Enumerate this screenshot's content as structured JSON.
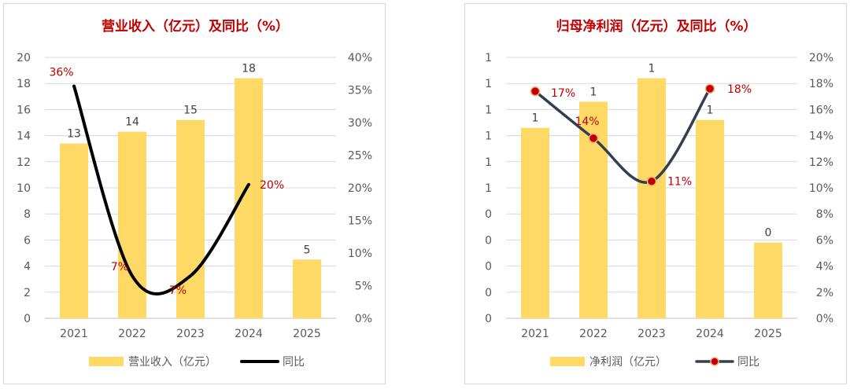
{
  "chart_data": [
    {
      "type": "bar",
      "title": "营业收入（亿元）及同比（%）",
      "categories": [
        "2021",
        "2022",
        "2023",
        "2024",
        "2025"
      ],
      "ylim": [
        0,
        20
      ],
      "y_ticks": [
        "0",
        "2",
        "4",
        "6",
        "8",
        "10",
        "12",
        "14",
        "16",
        "18",
        "20"
      ],
      "y2lim": [
        0,
        40
      ],
      "y2_ticks": [
        "0%",
        "5%",
        "10%",
        "15%",
        "20%",
        "25%",
        "30%",
        "35%",
        "40%"
      ],
      "series": [
        {
          "name": "营业收入（亿元）",
          "type": "bar",
          "axis": "left",
          "values": [
            13.4,
            14.3,
            15.2,
            18.4,
            4.5
          ],
          "labels": [
            "13",
            "14",
            "15",
            "18",
            "5"
          ]
        },
        {
          "name": "同比",
          "type": "line",
          "axis": "right",
          "smooth": true,
          "markers": false,
          "values": [
            35.6,
            6.5,
            6.5,
            20.5,
            null
          ],
          "labels": [
            "36%",
            "7%",
            "7%",
            "20%",
            ""
          ]
        }
      ],
      "legend_position": "bottom",
      "grid": true,
      "colors": {
        "bar": "#FFD966",
        "line": "#000000",
        "labels": "#C00000"
      }
    },
    {
      "type": "bar",
      "title": "归母净利润（亿元）及同比（%）",
      "categories": [
        "2021",
        "2022",
        "2023",
        "2024",
        "2025"
      ],
      "ylim": [
        0,
        1.0
      ],
      "y_ticks": [
        "0",
        "0",
        "0",
        "0",
        "0",
        "1",
        "1",
        "1",
        "1",
        "1",
        "1"
      ],
      "y2lim": [
        0,
        20
      ],
      "y2_ticks": [
        "0%",
        "2%",
        "4%",
        "6%",
        "8%",
        "10%",
        "12%",
        "14%",
        "16%",
        "18%",
        "20%"
      ],
      "series": [
        {
          "name": "净利润（亿元）",
          "type": "bar",
          "axis": "left",
          "values": [
            0.73,
            0.83,
            0.92,
            0.76,
            0.29
          ],
          "labels": [
            "1",
            "1",
            "1",
            "1",
            "0"
          ]
        },
        {
          "name": "同比",
          "type": "line",
          "axis": "right",
          "smooth": true,
          "markers": true,
          "values": [
            17.4,
            13.8,
            10.5,
            17.6,
            null
          ],
          "labels": [
            "17%",
            "14%",
            "11%",
            "18%",
            ""
          ]
        }
      ],
      "legend_position": "bottom",
      "grid": true,
      "colors": {
        "bar": "#FFD966",
        "line": "#333F50",
        "marker": "#C00000",
        "labels": "#C00000"
      }
    }
  ]
}
